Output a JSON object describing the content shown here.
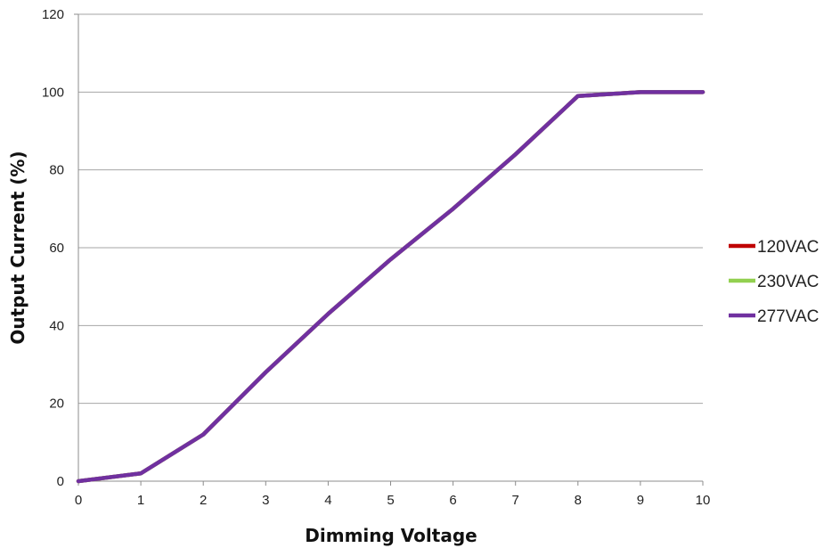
{
  "chart_data": {
    "type": "line",
    "title": "",
    "xlabel": "Dimming Voltage",
    "ylabel": "Output Current (%)",
    "xlim": [
      0,
      10
    ],
    "ylim": [
      0,
      120
    ],
    "x_ticks": [
      0,
      1,
      2,
      3,
      4,
      5,
      6,
      7,
      8,
      9,
      10
    ],
    "y_ticks": [
      0,
      20,
      40,
      60,
      80,
      100,
      120
    ],
    "grid": "horizontal",
    "legend_position": "right",
    "x": [
      0,
      1,
      2,
      3,
      4,
      5,
      6,
      7,
      8,
      9,
      10
    ],
    "series": [
      {
        "name": "120VAC",
        "color": "#c00000",
        "values": [
          0,
          2,
          12,
          28,
          43,
          57,
          70,
          84,
          99,
          100,
          100
        ]
      },
      {
        "name": "230VAC",
        "color": "#92d050",
        "values": [
          0,
          2,
          12,
          28,
          43,
          57,
          70,
          84,
          99,
          100,
          100
        ]
      },
      {
        "name": "277VAC",
        "color": "#7030a0",
        "values": [
          0,
          2,
          12,
          28,
          43,
          57,
          70,
          84,
          99,
          100,
          100
        ]
      }
    ]
  }
}
